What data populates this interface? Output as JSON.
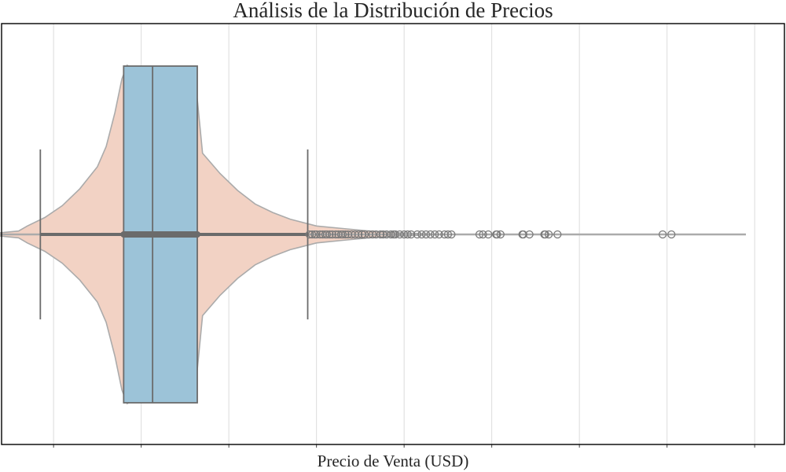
{
  "chart_data": {
    "type": "violin",
    "title": "Análisis de la Distribución de Precios",
    "xlabel": "Precio de Venta (USD)",
    "ylabel": "",
    "orientation": "horizontal",
    "xlim": [
      0,
      800000
    ],
    "grid": {
      "vertical": true,
      "horizontal": false
    },
    "x_ticks": [
      50000,
      150000,
      250000,
      350000,
      450000,
      550000,
      650000,
      750000,
      850000
    ],
    "colors": {
      "violin_fill": "#f2d2c4",
      "violin_edge": "#ababab",
      "box_fill": "#9cc3d8",
      "box_edge": "#6b6b6b",
      "outlier": "#7a7a7a"
    },
    "violin_density": [
      [
        -30000,
        0.0
      ],
      [
        10000,
        0.02
      ],
      [
        20000,
        0.05
      ],
      [
        40000,
        0.1
      ],
      [
        60000,
        0.17
      ],
      [
        80000,
        0.27
      ],
      [
        100000,
        0.4
      ],
      [
        110000,
        0.52
      ],
      [
        120000,
        0.72
      ],
      [
        128000,
        0.92
      ],
      [
        134000,
        1.0
      ],
      [
        140000,
        0.98
      ],
      [
        148000,
        0.9
      ],
      [
        160000,
        0.85
      ],
      [
        180000,
        0.82
      ],
      [
        200000,
        0.8
      ],
      [
        214000,
        0.8
      ],
      [
        220000,
        0.48
      ],
      [
        240000,
        0.36
      ],
      [
        260000,
        0.26
      ],
      [
        280000,
        0.18
      ],
      [
        300000,
        0.13
      ],
      [
        320000,
        0.09
      ],
      [
        350000,
        0.05
      ],
      [
        380000,
        0.035
      ],
      [
        410000,
        0.02
      ],
      [
        440000,
        0.01
      ],
      [
        470000,
        0.004
      ],
      [
        500000,
        0.0
      ]
    ],
    "box": {
      "whisker_low": 34900,
      "q1": 129975,
      "median": 163000,
      "q3": 214000,
      "whisker_high": 340000
    },
    "outliers": [
      342000,
      345000,
      348000,
      350000,
      354000,
      357000,
      360000,
      362000,
      365000,
      368000,
      372000,
      375000,
      378000,
      380000,
      383000,
      386000,
      390000,
      394000,
      398000,
      402000,
      405000,
      410000,
      414000,
      418000,
      423000,
      426000,
      430000,
      435000,
      438000,
      440000,
      445000,
      450000,
      454000,
      458000,
      465000,
      470000,
      475000,
      480000,
      485000,
      490000,
      496000,
      500000,
      504000,
      536000,
      540000,
      546000,
      555000,
      556000,
      560000,
      585000,
      586000,
      593000,
      610000,
      611000,
      615000,
      625000,
      745000,
      755000
    ]
  }
}
